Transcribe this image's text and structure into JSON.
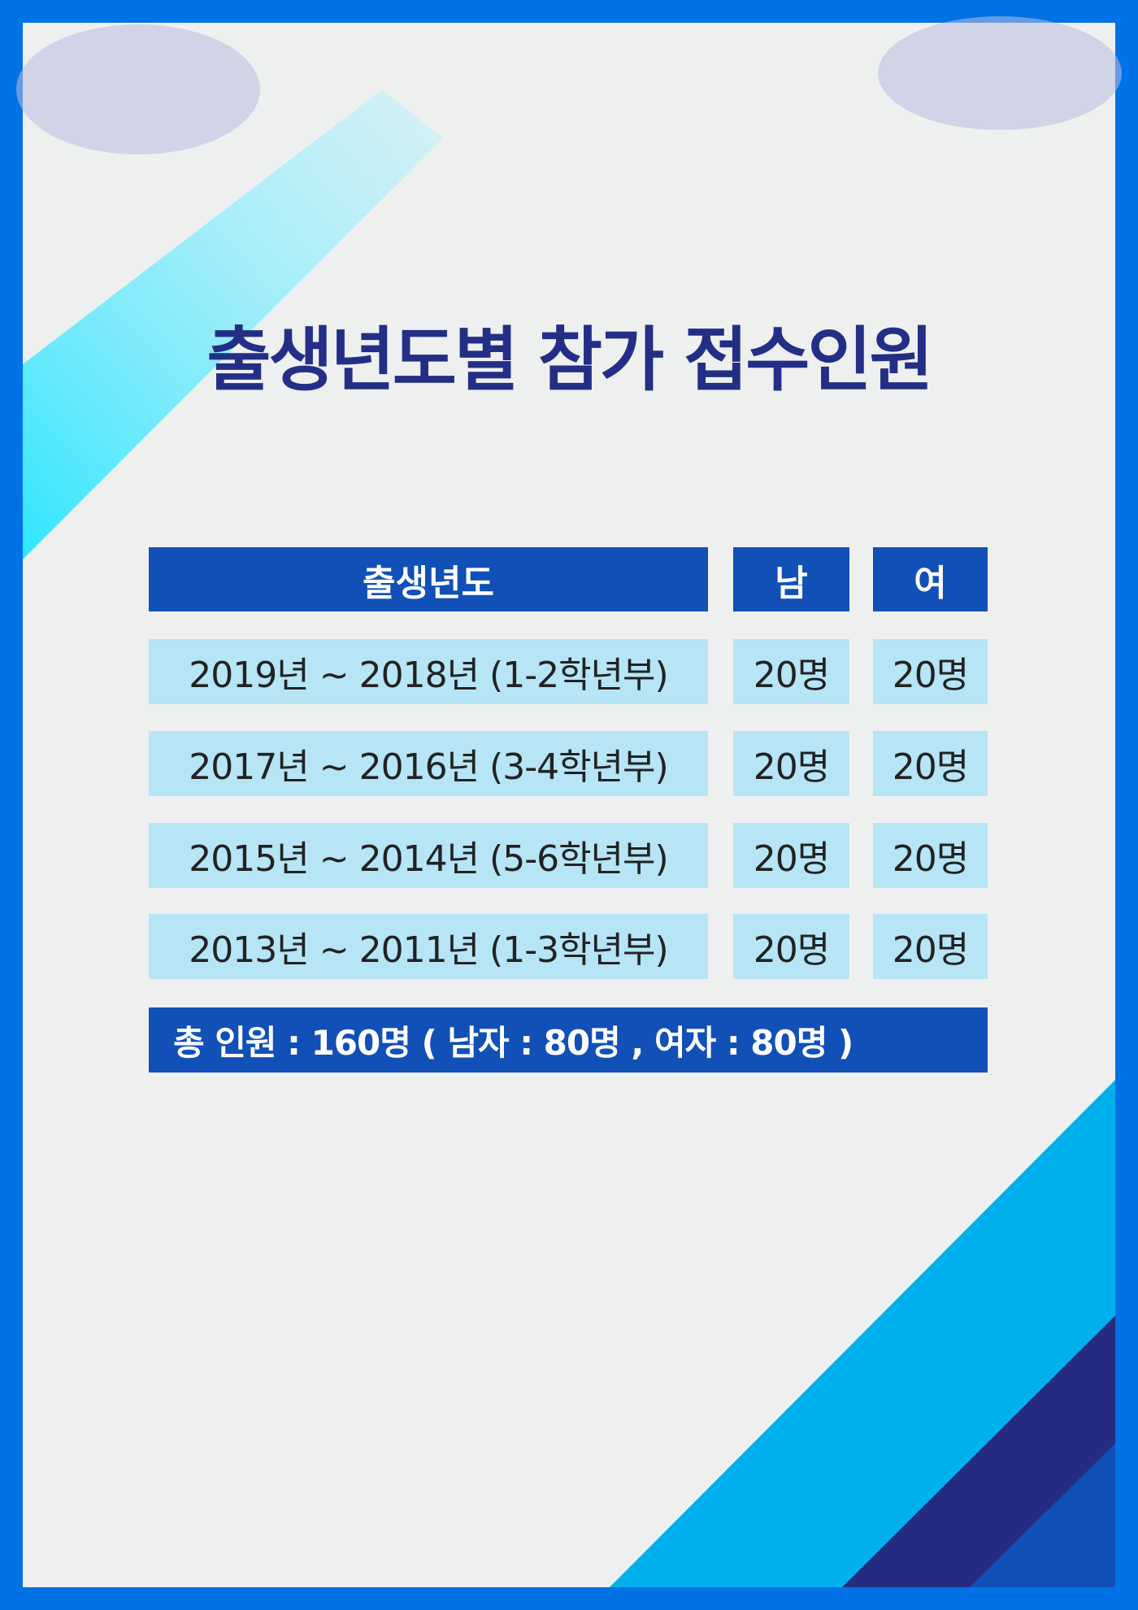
{
  "title": "출생년도별 참가 접수인원",
  "colors": {
    "border": "#0072e5",
    "header_bg": "#1150b6",
    "row_bg": "#b6e5f5",
    "title": "#232f86",
    "stripe_cyan": "#00b7ef",
    "stripe_navy": "#252b80",
    "stripe_blue": "#1150b6"
  },
  "table": {
    "headers": [
      "출생년도",
      "남",
      "여"
    ],
    "rows": [
      {
        "year": "2019년 ~ 2018년 (1-2학년부)",
        "male": "20명",
        "female": "20명"
      },
      {
        "year": "2017년 ~ 2016년 (3-4학년부)",
        "male": "20명",
        "female": "20명"
      },
      {
        "year": "2015년 ~ 2014년 (5-6학년부)",
        "male": "20명",
        "female": "20명"
      },
      {
        "year": "2013년 ~ 2011년 (1-3학년부)",
        "male": "20명",
        "female": "20명"
      }
    ],
    "total": "총 인원 : 160명 ( 남자 : 80명 , 여자 : 80명 )"
  }
}
